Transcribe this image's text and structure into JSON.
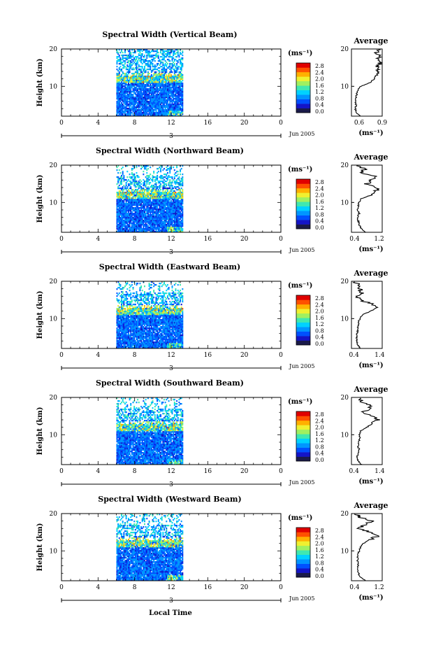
{
  "figure": {
    "xlabel": "Local Time",
    "date_label": "Jun 2005",
    "day_label": "3",
    "units_label": "(ms⁻¹)",
    "average_title": "Average",
    "average_xlabel": "(ms⁻¹)"
  },
  "colorscale": {
    "ticks": [
      "2.8",
      "2.4",
      "2.0",
      "1.6",
      "1.2",
      "0.8",
      "0.4",
      "0.0"
    ],
    "colors": [
      "#1a1a4a",
      "#1414c8",
      "#0050ff",
      "#0096ff",
      "#00d2ff",
      "#40e8b0",
      "#a0f060",
      "#f0f030",
      "#ffb000",
      "#ff5000",
      "#e00000"
    ]
  },
  "chart_data": [
    {
      "type": "heatmap",
      "title": "Spectral Width (Vertical Beam)",
      "xlabel": "Local Time",
      "ylabel": "Height (km)",
      "xlim": [
        0,
        24
      ],
      "ylim": [
        2,
        20
      ],
      "x_ticks": [
        "0",
        "4",
        "8",
        "12",
        "16",
        "20",
        "0"
      ],
      "y_ticks": [
        "10",
        "20"
      ],
      "data_time_range": [
        6,
        13.3
      ],
      "colorbar": {
        "label": "(ms⁻¹)",
        "range": [
          0.0,
          2.8
        ]
      },
      "average_profile": {
        "title": "Average",
        "xlabel": "(ms⁻¹)",
        "xlim": [
          0.5,
          0.9
        ],
        "x_ticks": [
          "0.6",
          "0.9"
        ],
        "y_ticks": [
          "10",
          "20"
        ],
        "x": [
          0.62,
          0.56,
          0.55,
          0.56,
          0.55,
          0.56,
          0.57,
          0.58,
          0.62,
          0.74,
          0.8,
          0.82,
          0.86,
          0.83,
          0.88,
          0.84,
          0.87,
          0.82,
          0.85
        ],
        "y": [
          2,
          3,
          4,
          5,
          6,
          7,
          8,
          9,
          10,
          11,
          12,
          13,
          14,
          15,
          16,
          17,
          18,
          19,
          20
        ]
      }
    },
    {
      "type": "heatmap",
      "title": "Spectral Width (Northward Beam)",
      "xlabel": "Local Time",
      "ylabel": "Height (km)",
      "xlim": [
        0,
        24
      ],
      "ylim": [
        2,
        20
      ],
      "x_ticks": [
        "0",
        "4",
        "8",
        "12",
        "16",
        "20",
        "0"
      ],
      "y_ticks": [
        "10",
        "20"
      ],
      "data_time_range": [
        6,
        13.3
      ],
      "colorbar": {
        "label": "(ms⁻¹)",
        "range": [
          0.0,
          2.8
        ]
      },
      "average_profile": {
        "title": "Average",
        "xlabel": "(ms⁻¹)",
        "xlim": [
          0.3,
          1.3
        ],
        "x_ticks": [
          "0.4",
          "1.2"
        ],
        "y_ticks": [
          "10",
          "20"
        ],
        "x": [
          0.75,
          0.62,
          0.55,
          0.52,
          0.5,
          0.55,
          0.5,
          0.52,
          0.55,
          0.6,
          0.95,
          1.1,
          1.15,
          0.8,
          0.95,
          1.12,
          0.6,
          0.75,
          0.45
        ],
        "y": [
          2,
          3,
          4,
          5,
          6,
          7,
          8,
          9,
          10,
          11,
          12,
          13,
          14,
          15,
          16,
          17,
          18,
          19,
          20
        ]
      }
    },
    {
      "type": "heatmap",
      "title": "Spectral Width (Eastward Beam)",
      "xlabel": "Local Time",
      "ylabel": "Height (km)",
      "xlim": [
        0,
        24
      ],
      "ylim": [
        2,
        20
      ],
      "x_ticks": [
        "0",
        "4",
        "8",
        "12",
        "16",
        "20",
        "0"
      ],
      "y_ticks": [
        "10",
        "20"
      ],
      "data_time_range": [
        6,
        13.3
      ],
      "colorbar": {
        "label": "(ms⁻¹)",
        "range": [
          0.0,
          2.8
        ]
      },
      "average_profile": {
        "title": "Average",
        "xlabel": "(ms⁻¹)",
        "xlim": [
          0.3,
          1.5
        ],
        "x_ticks": [
          "0.4",
          "1.4"
        ],
        "y_ticks": [
          "10",
          "20"
        ],
        "x": [
          0.65,
          0.55,
          0.52,
          0.5,
          0.52,
          0.55,
          0.55,
          0.58,
          0.62,
          0.72,
          1.05,
          1.3,
          1.05,
          0.65,
          0.55,
          0.7,
          0.62,
          0.55,
          0.45
        ],
        "y": [
          2,
          3,
          4,
          5,
          6,
          7,
          8,
          9,
          10,
          11,
          12,
          13,
          14,
          15,
          16,
          17,
          18,
          19,
          20
        ]
      }
    },
    {
      "type": "heatmap",
      "title": "Spectral Width (Southward Beam)",
      "xlabel": "Local Time",
      "ylabel": "Height (km)",
      "xlim": [
        0,
        24
      ],
      "ylim": [
        2,
        20
      ],
      "x_ticks": [
        "0",
        "4",
        "8",
        "12",
        "16",
        "20",
        "0"
      ],
      "y_ticks": [
        "10",
        "20"
      ],
      "data_time_range": [
        6,
        13.3
      ],
      "colorbar": {
        "label": "(ms⁻¹)",
        "range": [
          0.0,
          2.8
        ]
      },
      "average_profile": {
        "title": "Average",
        "xlabel": "(ms⁻¹)",
        "xlim": [
          0.3,
          1.5
        ],
        "x_ticks": [
          "0.4",
          "1.4"
        ],
        "y_ticks": [
          "10",
          "20"
        ],
        "x": [
          0.7,
          0.55,
          0.52,
          0.55,
          0.6,
          0.55,
          0.58,
          0.62,
          0.6,
          0.65,
          0.9,
          1.1,
          1.35,
          1.05,
          0.75,
          1.05,
          0.95,
          0.7,
          0.55
        ],
        "y": [
          2,
          3,
          4,
          5,
          6,
          7,
          8,
          9,
          10,
          11,
          12,
          13,
          14,
          15,
          16,
          17,
          18,
          19,
          20
        ]
      }
    },
    {
      "type": "heatmap",
      "title": "Spectral Width (Westward Beam)",
      "xlabel": "Local Time",
      "ylabel": "Height (km)",
      "xlim": [
        0,
        24
      ],
      "ylim": [
        2,
        20
      ],
      "x_ticks": [
        "0",
        "4",
        "8",
        "12",
        "16",
        "20",
        "0"
      ],
      "y_ticks": [
        "10",
        "20"
      ],
      "data_time_range": [
        6,
        13.3
      ],
      "colorbar": {
        "label": "(ms⁻¹)",
        "range": [
          0.0,
          2.8
        ]
      },
      "average_profile": {
        "title": "Average",
        "xlabel": "(ms⁻¹)",
        "xlim": [
          0.3,
          1.3
        ],
        "x_ticks": [
          "0.4",
          "1.2"
        ],
        "y_ticks": [
          "10",
          "20"
        ],
        "x": [
          0.75,
          0.6,
          0.52,
          0.5,
          0.52,
          0.5,
          0.5,
          0.52,
          0.55,
          0.6,
          0.68,
          0.9,
          1.15,
          0.95,
          0.55,
          0.75,
          0.95,
          0.6,
          0.45
        ],
        "y": [
          2,
          3,
          4,
          5,
          6,
          7,
          8,
          9,
          10,
          11,
          12,
          13,
          14,
          15,
          16,
          17,
          18,
          19,
          20
        ]
      }
    }
  ]
}
